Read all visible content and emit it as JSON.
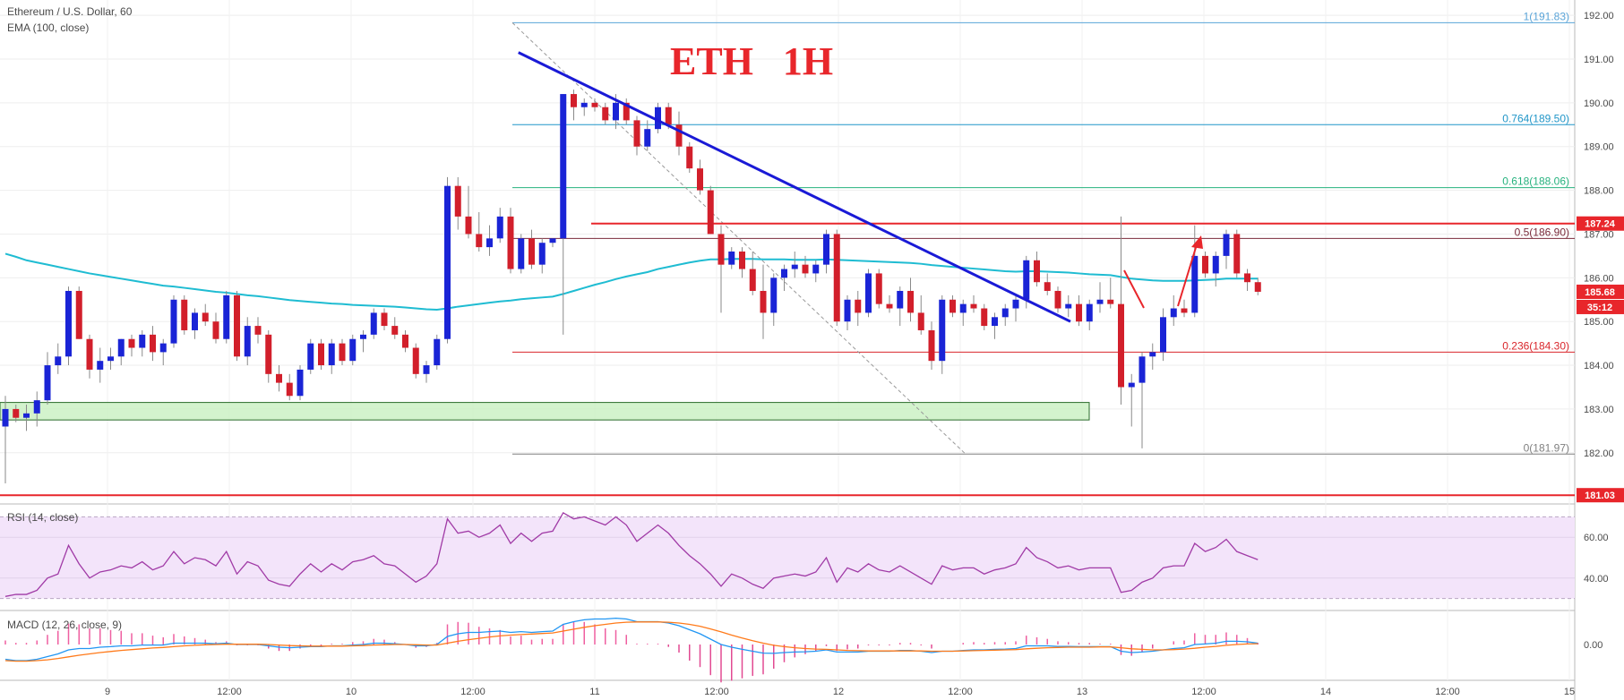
{
  "header": {
    "symbol_title": "Ethereum / U.S. Dollar, 60",
    "ema_label": "EMA (100, close)",
    "overlay_title": "ETH   1H"
  },
  "price_axis": {
    "ticks": [
      192,
      191,
      190,
      189,
      188,
      187,
      186,
      185,
      184,
      183,
      182
    ],
    "min": 180.85,
    "max": 192.35,
    "tags": [
      {
        "value": 187.24,
        "text": "187.24",
        "color": "#e8262b"
      },
      {
        "value": 185.68,
        "text": "185.68",
        "color": "#e8262b"
      },
      {
        "value": 181.03,
        "text": "181.03",
        "color": "#e8262b"
      }
    ],
    "countdown": "35:12"
  },
  "time_axis": {
    "labels": [
      "9",
      "12:00",
      "10",
      "12:00",
      "11",
      "12:00",
      "12",
      "12:00",
      "13",
      "12:00",
      "14",
      "12:00",
      "15"
    ]
  },
  "fibonacci": [
    {
      "ratio": "1",
      "value": 191.83,
      "text": "1(191.83)",
      "color": "#5aa4d8"
    },
    {
      "ratio": "0.764",
      "value": 189.5,
      "text": "0.764(189.50)",
      "color": "#2196c8"
    },
    {
      "ratio": "0.618",
      "value": 188.06,
      "text": "0.618(188.06)",
      "color": "#26b27e"
    },
    {
      "ratio": "0.5",
      "value": 186.9,
      "text": "0.5(186.90)",
      "color": "#7a2a3a"
    },
    {
      "ratio": "0.236",
      "value": 184.3,
      "text": "0.236(184.30)",
      "color": "#d9262b"
    },
    {
      "ratio": "0",
      "value": 181.97,
      "text": "0(181.97)",
      "color": "#808080"
    }
  ],
  "horizontal_levels": [
    {
      "value": 187.24,
      "color": "#e8262b"
    },
    {
      "value": 181.03,
      "color": "#e8262b"
    }
  ],
  "support_zone": {
    "low": 182.75,
    "high": 183.15
  },
  "trendline": {
    "from_index": 65,
    "from_price": 191.15,
    "to_index": 140,
    "to_price": 185.0
  },
  "colors": {
    "up": "#1a24d6",
    "down": "#d21f2b",
    "ema": "#1fbcd2",
    "rsi": "#a03aa6",
    "macd": "#2196f3",
    "signal": "#ff7a1a",
    "hist_pos": "#ef5fa0",
    "hist_neg": "#e24a92"
  },
  "rsi_panel": {
    "label": "RSI (14, close)",
    "ticks": [
      60,
      40
    ],
    "tick_text": [
      "60.00",
      "40.00"
    ],
    "upper": 70,
    "lower": 30
  },
  "macd_panel": {
    "label": "MACD (12, 26, close, 9)",
    "tick_text": "0.00"
  },
  "chart_data": {
    "type": "candlestick",
    "title": "Ethereum / U.S. Dollar, 60",
    "timeframe_minutes": 60,
    "start_index_offset": 0,
    "candles": [
      [
        182.6,
        183.3,
        181.3,
        183.0
      ],
      [
        183.0,
        183.1,
        182.7,
        182.8
      ],
      [
        182.8,
        183.1,
        182.5,
        182.9
      ],
      [
        182.9,
        183.4,
        182.6,
        183.2
      ],
      [
        183.2,
        184.3,
        183.1,
        184.0
      ],
      [
        184.0,
        184.5,
        183.8,
        184.2
      ],
      [
        184.2,
        185.8,
        184.0,
        185.7
      ],
      [
        185.7,
        185.8,
        184.6,
        184.6
      ],
      [
        184.6,
        184.7,
        183.7,
        183.9
      ],
      [
        183.9,
        184.4,
        183.6,
        184.1
      ],
      [
        184.1,
        184.4,
        183.9,
        184.2
      ],
      [
        184.2,
        184.6,
        184.0,
        184.6
      ],
      [
        184.6,
        184.7,
        184.2,
        184.4
      ],
      [
        184.4,
        184.8,
        184.2,
        184.7
      ],
      [
        184.7,
        184.9,
        184.1,
        184.3
      ],
      [
        184.3,
        184.6,
        184.0,
        184.5
      ],
      [
        184.5,
        185.6,
        184.4,
        185.5
      ],
      [
        185.5,
        185.6,
        184.7,
        184.8
      ],
      [
        184.8,
        185.3,
        184.6,
        185.2
      ],
      [
        185.2,
        185.4,
        184.9,
        185.0
      ],
      [
        185.0,
        185.2,
        184.5,
        184.6
      ],
      [
        184.6,
        185.7,
        184.5,
        185.6
      ],
      [
        185.6,
        185.7,
        184.1,
        184.2
      ],
      [
        184.2,
        185.1,
        184.0,
        184.9
      ],
      [
        184.9,
        185.1,
        184.5,
        184.7
      ],
      [
        184.7,
        184.8,
        183.6,
        183.8
      ],
      [
        183.8,
        184.0,
        183.4,
        183.6
      ],
      [
        183.6,
        183.8,
        183.2,
        183.3
      ],
      [
        183.3,
        184.0,
        183.2,
        183.9
      ],
      [
        183.9,
        184.6,
        183.8,
        184.5
      ],
      [
        184.5,
        184.6,
        183.9,
        184.0
      ],
      [
        184.0,
        184.6,
        183.8,
        184.5
      ],
      [
        184.5,
        184.6,
        184.0,
        184.1
      ],
      [
        184.1,
        184.7,
        184.0,
        184.6
      ],
      [
        184.6,
        184.8,
        184.3,
        184.7
      ],
      [
        184.7,
        185.3,
        184.6,
        185.2
      ],
      [
        185.2,
        185.3,
        184.8,
        184.9
      ],
      [
        184.9,
        185.1,
        184.6,
        184.7
      ],
      [
        184.7,
        184.8,
        184.3,
        184.4
      ],
      [
        184.4,
        184.5,
        183.7,
        183.8
      ],
      [
        183.8,
        184.1,
        183.6,
        184.0
      ],
      [
        184.0,
        184.7,
        183.9,
        184.6
      ],
      [
        184.6,
        188.3,
        184.5,
        188.1
      ],
      [
        188.1,
        188.3,
        187.1,
        187.4
      ],
      [
        187.4,
        188.1,
        186.9,
        187.0
      ],
      [
        187.0,
        187.5,
        186.6,
        186.7
      ],
      [
        186.7,
        187.2,
        186.5,
        186.9
      ],
      [
        186.9,
        187.6,
        186.8,
        187.4
      ],
      [
        187.4,
        187.6,
        186.1,
        186.2
      ],
      [
        186.2,
        187.0,
        186.1,
        186.9
      ],
      [
        186.9,
        187.1,
        186.2,
        186.3
      ],
      [
        186.3,
        186.9,
        186.1,
        186.8
      ],
      [
        186.8,
        186.9,
        186.7,
        186.9
      ],
      [
        186.9,
        190.2,
        184.7,
        190.2
      ],
      [
        190.2,
        190.3,
        189.6,
        189.9
      ],
      [
        189.9,
        190.1,
        189.7,
        190.0
      ],
      [
        190.0,
        190.1,
        189.8,
        189.9
      ],
      [
        189.9,
        190.0,
        189.5,
        189.6
      ],
      [
        189.6,
        190.2,
        189.4,
        190.0
      ],
      [
        190.0,
        190.1,
        189.5,
        189.6
      ],
      [
        189.6,
        189.7,
        188.8,
        189.0
      ],
      [
        189.0,
        189.6,
        188.9,
        189.4
      ],
      [
        189.4,
        190.0,
        189.3,
        189.9
      ],
      [
        189.9,
        190.0,
        189.4,
        189.5
      ],
      [
        189.5,
        189.8,
        188.8,
        189.0
      ],
      [
        189.0,
        189.1,
        188.4,
        188.5
      ],
      [
        188.5,
        188.7,
        187.9,
        188.0
      ],
      [
        188.0,
        188.1,
        187.0,
        187.0
      ],
      [
        187.0,
        187.2,
        185.2,
        186.3
      ],
      [
        186.3,
        186.7,
        186.2,
        186.6
      ],
      [
        186.6,
        186.7,
        186.0,
        186.2
      ],
      [
        186.2,
        186.6,
        185.6,
        185.7
      ],
      [
        185.7,
        186.3,
        184.6,
        185.2
      ],
      [
        185.2,
        186.1,
        184.9,
        186.0
      ],
      [
        186.0,
        186.3,
        185.7,
        186.2
      ],
      [
        186.2,
        186.6,
        186.0,
        186.3
      ],
      [
        186.3,
        186.5,
        186.0,
        186.1
      ],
      [
        186.1,
        186.4,
        185.9,
        186.3
      ],
      [
        186.3,
        187.1,
        186.1,
        187.0
      ],
      [
        187.0,
        187.1,
        184.9,
        185.0
      ],
      [
        185.0,
        185.6,
        184.8,
        185.5
      ],
      [
        185.5,
        185.7,
        184.9,
        185.2
      ],
      [
        185.2,
        186.2,
        185.1,
        186.1
      ],
      [
        186.1,
        186.2,
        185.3,
        185.4
      ],
      [
        185.4,
        185.6,
        185.2,
        185.3
      ],
      [
        185.3,
        185.8,
        184.9,
        185.7
      ],
      [
        185.7,
        186.0,
        185.0,
        185.2
      ],
      [
        185.2,
        185.6,
        184.7,
        184.8
      ],
      [
        184.8,
        185.0,
        183.9,
        184.1
      ],
      [
        184.1,
        185.6,
        183.8,
        185.5
      ],
      [
        185.5,
        185.6,
        185.1,
        185.2
      ],
      [
        185.2,
        185.5,
        184.9,
        185.4
      ],
      [
        185.4,
        185.6,
        185.2,
        185.3
      ],
      [
        185.3,
        185.4,
        184.8,
        184.9
      ],
      [
        184.9,
        185.2,
        184.6,
        185.1
      ],
      [
        185.1,
        185.4,
        184.9,
        185.3
      ],
      [
        185.3,
        185.6,
        185.0,
        185.5
      ],
      [
        185.5,
        186.5,
        185.3,
        186.4
      ],
      [
        186.4,
        186.6,
        185.8,
        185.9
      ],
      [
        185.9,
        186.1,
        185.6,
        185.7
      ],
      [
        185.7,
        185.8,
        185.2,
        185.3
      ],
      [
        185.3,
        185.6,
        185.1,
        185.4
      ],
      [
        185.4,
        185.6,
        184.9,
        185.0
      ],
      [
        185.0,
        185.5,
        184.8,
        185.4
      ],
      [
        185.4,
        185.9,
        185.2,
        185.5
      ],
      [
        185.5,
        186.0,
        185.3,
        185.4
      ],
      [
        185.4,
        187.4,
        183.1,
        183.5
      ],
      [
        183.5,
        183.8,
        182.6,
        183.6
      ],
      [
        183.6,
        184.3,
        182.1,
        184.2
      ],
      [
        184.2,
        184.5,
        183.9,
        184.3
      ],
      [
        184.3,
        185.3,
        184.1,
        185.1
      ],
      [
        185.1,
        185.6,
        184.9,
        185.3
      ],
      [
        185.3,
        185.5,
        185.1,
        185.2
      ],
      [
        185.2,
        187.2,
        185.1,
        186.5
      ],
      [
        186.5,
        186.6,
        186.0,
        186.1
      ],
      [
        186.1,
        186.6,
        185.8,
        186.5
      ],
      [
        186.5,
        187.1,
        186.2,
        187.0
      ],
      [
        187.0,
        187.1,
        186.0,
        186.1
      ],
      [
        186.1,
        186.2,
        185.7,
        185.9
      ],
      [
        185.9,
        186.0,
        185.6,
        185.68
      ]
    ],
    "ema100": [
      186.55,
      186.48,
      186.4,
      186.35,
      186.3,
      186.25,
      186.2,
      186.15,
      186.1,
      186.06,
      186.02,
      185.98,
      185.94,
      185.9,
      185.86,
      185.82,
      185.8,
      185.77,
      185.74,
      185.71,
      185.68,
      185.66,
      185.63,
      185.6,
      185.58,
      185.55,
      185.52,
      185.49,
      185.47,
      185.45,
      185.43,
      185.41,
      185.4,
      185.38,
      185.37,
      185.36,
      185.35,
      185.34,
      185.32,
      185.3,
      185.28,
      185.27,
      185.3,
      185.34,
      185.37,
      185.4,
      185.43,
      185.46,
      185.48,
      185.51,
      185.53,
      185.55,
      185.57,
      185.63,
      185.7,
      185.77,
      185.84,
      185.9,
      185.97,
      186.03,
      186.08,
      186.13,
      186.2,
      186.25,
      186.3,
      186.35,
      186.39,
      186.42,
      186.42,
      186.43,
      186.43,
      186.43,
      186.42,
      186.42,
      186.42,
      186.41,
      186.41,
      186.41,
      186.42,
      186.41,
      186.4,
      186.39,
      186.38,
      186.37,
      186.36,
      186.35,
      186.34,
      186.32,
      186.29,
      186.27,
      186.25,
      186.23,
      186.21,
      186.19,
      186.17,
      186.15,
      186.14,
      186.15,
      186.15,
      186.14,
      186.13,
      186.12,
      186.1,
      186.08,
      186.07,
      186.06,
      186.02,
      185.98,
      185.96,
      185.94,
      185.93,
      185.93,
      185.93,
      185.94,
      185.95,
      185.96,
      185.98,
      185.98,
      185.98,
      185.98
    ],
    "rsi": [
      31,
      32,
      32,
      34,
      40,
      42,
      56,
      47,
      40,
      43,
      44,
      46,
      45,
      48,
      44,
      46,
      53,
      47,
      50,
      49,
      46,
      53,
      42,
      48,
      46,
      39,
      37,
      36,
      42,
      47,
      43,
      47,
      44,
      48,
      49,
      51,
      47,
      46,
      42,
      38,
      41,
      47,
      69,
      62,
      63,
      60,
      62,
      66,
      57,
      62,
      58,
      62,
      63,
      72,
      69,
      70,
      68,
      66,
      70,
      66,
      58,
      62,
      66,
      62,
      56,
      51,
      47,
      42,
      36,
      42,
      40,
      37,
      35,
      40,
      41,
      42,
      41,
      43,
      50,
      38,
      45,
      43,
      47,
      44,
      43,
      46,
      43,
      40,
      37,
      46,
      44,
      45,
      45,
      42,
      44,
      45,
      47,
      55,
      50,
      48,
      45,
      46,
      44,
      45,
      45,
      45,
      33,
      34,
      38,
      40,
      45,
      46,
      46,
      57,
      53,
      55,
      59,
      53,
      51,
      49
    ],
    "macd": [
      -0.55,
      -0.6,
      -0.6,
      -0.55,
      -0.45,
      -0.35,
      -0.2,
      -0.15,
      -0.15,
      -0.1,
      -0.08,
      -0.05,
      -0.05,
      -0.02,
      -0.02,
      -0.02,
      0.05,
      0.05,
      0.05,
      0.05,
      0.03,
      0.05,
      0.0,
      0.0,
      0.0,
      -0.05,
      -0.1,
      -0.12,
      -0.1,
      -0.08,
      -0.08,
      -0.05,
      -0.05,
      -0.02,
      0.0,
      0.05,
      0.05,
      0.03,
      0.0,
      -0.05,
      -0.05,
      0.0,
      0.3,
      0.4,
      0.45,
      0.45,
      0.48,
      0.5,
      0.45,
      0.48,
      0.45,
      0.48,
      0.5,
      0.75,
      0.85,
      0.92,
      0.95,
      0.95,
      0.98,
      0.95,
      0.85,
      0.85,
      0.85,
      0.8,
      0.7,
      0.55,
      0.4,
      0.2,
      0.0,
      -0.1,
      -0.18,
      -0.25,
      -0.32,
      -0.33,
      -0.3,
      -0.28,
      -0.27,
      -0.25,
      -0.2,
      -0.28,
      -0.28,
      -0.28,
      -0.25,
      -0.25,
      -0.25,
      -0.22,
      -0.22,
      -0.25,
      -0.3,
      -0.25,
      -0.25,
      -0.22,
      -0.2,
      -0.2,
      -0.18,
      -0.17,
      -0.15,
      -0.05,
      -0.05,
      -0.05,
      -0.07,
      -0.07,
      -0.08,
      -0.08,
      -0.08,
      -0.08,
      -0.25,
      -0.3,
      -0.28,
      -0.25,
      -0.2,
      -0.15,
      -0.12,
      0.0,
      0.02,
      0.05,
      0.12,
      0.12,
      0.1,
      0.05
    ],
    "signal": [
      -0.6,
      -0.62,
      -0.62,
      -0.6,
      -0.57,
      -0.52,
      -0.46,
      -0.4,
      -0.35,
      -0.3,
      -0.26,
      -0.22,
      -0.19,
      -0.16,
      -0.13,
      -0.11,
      -0.08,
      -0.05,
      -0.03,
      -0.01,
      0.0,
      0.01,
      0.01,
      0.01,
      0.01,
      0.0,
      -0.02,
      -0.04,
      -0.05,
      -0.06,
      -0.06,
      -0.06,
      -0.06,
      -0.05,
      -0.04,
      -0.02,
      -0.01,
      0.0,
      0.0,
      -0.01,
      -0.02,
      -0.02,
      0.05,
      0.12,
      0.18,
      0.23,
      0.28,
      0.32,
      0.35,
      0.37,
      0.39,
      0.41,
      0.43,
      0.5,
      0.57,
      0.64,
      0.7,
      0.75,
      0.8,
      0.83,
      0.84,
      0.84,
      0.84,
      0.83,
      0.8,
      0.75,
      0.68,
      0.58,
      0.47,
      0.35,
      0.24,
      0.14,
      0.05,
      -0.03,
      -0.08,
      -0.12,
      -0.15,
      -0.17,
      -0.18,
      -0.2,
      -0.22,
      -0.23,
      -0.24,
      -0.24,
      -0.24,
      -0.24,
      -0.24,
      -0.24,
      -0.25,
      -0.25,
      -0.25,
      -0.24,
      -0.23,
      -0.22,
      -0.21,
      -0.2,
      -0.19,
      -0.16,
      -0.14,
      -0.12,
      -0.11,
      -0.1,
      -0.1,
      -0.1,
      -0.09,
      -0.09,
      -0.12,
      -0.16,
      -0.18,
      -0.2,
      -0.2,
      -0.19,
      -0.17,
      -0.14,
      -0.1,
      -0.07,
      -0.03,
      0.0,
      0.02,
      0.03
    ]
  }
}
